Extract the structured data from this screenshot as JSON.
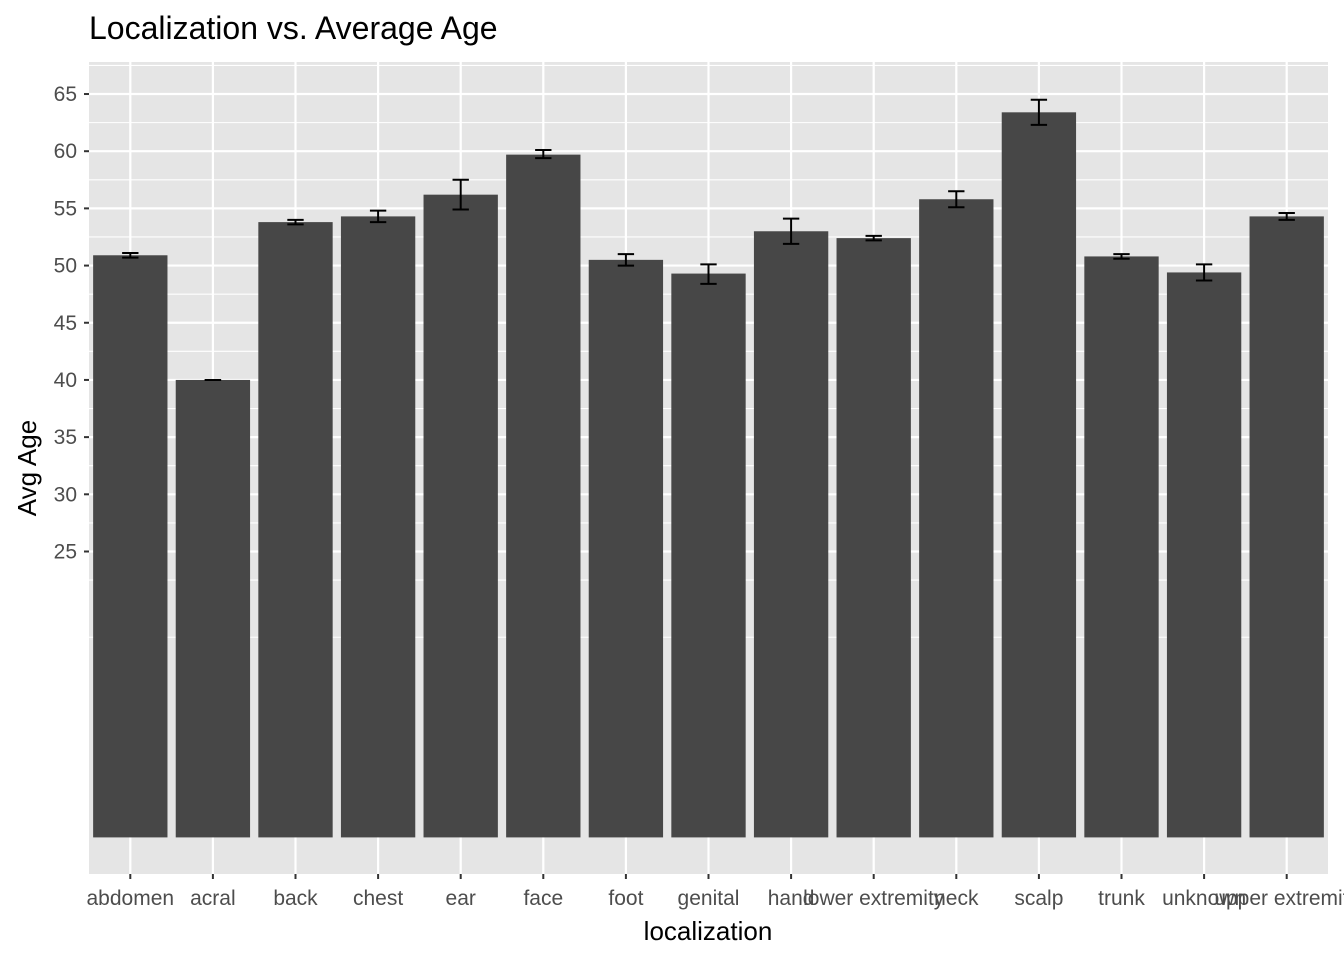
{
  "chart_data": {
    "type": "bar",
    "title": "Localization vs. Average Age",
    "xlabel": "localization",
    "ylabel": "Avg Age",
    "categories": [
      "abdomen",
      "acral",
      "back",
      "chest",
      "ear",
      "face",
      "foot",
      "genital",
      "hand",
      "lower extremity",
      "neck",
      "scalp",
      "trunk",
      "unknown",
      "upper extremity"
    ],
    "values": [
      50.9,
      40.0,
      53.8,
      54.3,
      56.2,
      59.7,
      50.5,
      49.3,
      53.0,
      52.4,
      55.8,
      63.4,
      50.8,
      49.4,
      54.3
    ],
    "error_low": [
      50.7,
      40.0,
      53.6,
      53.8,
      54.9,
      59.4,
      50.0,
      48.4,
      51.9,
      52.2,
      55.1,
      62.3,
      50.6,
      48.7,
      54.0
    ],
    "error_high": [
      51.1,
      40.0,
      54.0,
      54.8,
      57.5,
      60.1,
      51.0,
      50.1,
      54.1,
      52.6,
      56.5,
      64.5,
      51.0,
      50.1,
      54.6
    ],
    "yticks": [
      25,
      30,
      35,
      40,
      45,
      50,
      55,
      60,
      65
    ],
    "ylim": [
      -3.2,
      67.8
    ],
    "grid": true,
    "colors": {
      "panel_background": "#e5e5e5",
      "grid": "#ffffff",
      "bar": "#474747",
      "error_bar": "#000000"
    }
  }
}
